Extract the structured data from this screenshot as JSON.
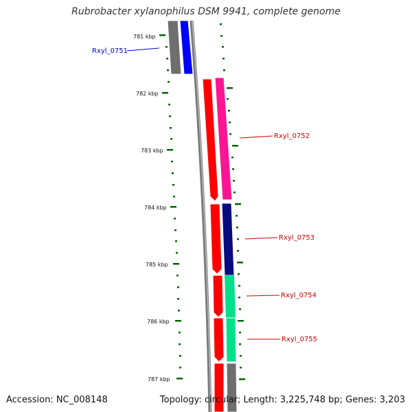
{
  "map": {
    "title": "Rubrobacter xylanophilus DSM 9941, complete genome",
    "accession": "Accession: NC_008148",
    "topology": "Topology: circular; Length: 3,225,748 bp; Genes: 3,203",
    "tick_labels": [
      "781 kbp",
      "782 kbp",
      "783 kbp",
      "784 kbp",
      "785 kbp",
      "786 kbp",
      "787 kbp"
    ],
    "genes": [
      {
        "name": "Rxyl_0751",
        "label_color": "#0000cc",
        "fill": "#0000ff",
        "strand": "+"
      },
      {
        "name": "Rxyl_0752",
        "label_color": "#cc0000",
        "fill": "#ff1493",
        "strand": "+"
      },
      {
        "name": "Rxyl_0753",
        "label_color": "#cc0000",
        "fill": "#0a0a80",
        "strand": "+"
      },
      {
        "name": "Rxyl_0754",
        "label_color": "#cc0000",
        "fill": "#00e08a",
        "strand": "+"
      },
      {
        "name": "Rxyl_0755",
        "label_color": "#cc0000",
        "fill": "#00e08a",
        "strand": "+"
      }
    ],
    "colors": {
      "backbone": "#7a7a7a",
      "cds": "#ff0000",
      "tick": "#006400",
      "neighbor": "#707070"
    }
  }
}
